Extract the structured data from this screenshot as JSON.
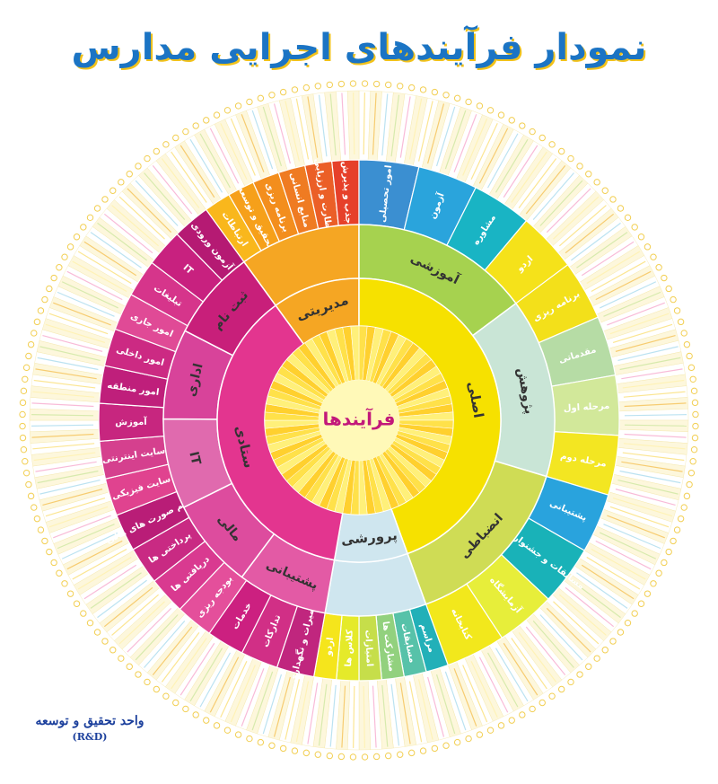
{
  "title": "نمودار فرآیندهای اجرایی مدارس",
  "footer": {
    "unit": "واحد تحقیق و توسعه",
    "abbr": "(R&D)"
  },
  "center_label": "فرآیندها",
  "sectors": [
    {
      "name": "مدیریتی",
      "color": "#f5a623",
      "children": [
        {
          "label": "ارتباطات",
          "color": "#f9b71c"
        },
        {
          "label": "تحقیق و توسعه",
          "color": "#f6a01a"
        },
        {
          "label": "برنامه ریزی",
          "color": "#f38e1d"
        },
        {
          "label": "منابع انسانی",
          "color": "#ef7b22"
        },
        {
          "label": "نظارت و ارزیابی",
          "color": "#eb5f27"
        },
        {
          "label": "جذب و پذیرش",
          "color": "#e6402a"
        }
      ]
    },
    {
      "name": "اصلی",
      "color": "#f6e100",
      "middle": [
        {
          "label": "آموزشی",
          "color": "#a6d24f"
        },
        {
          "label": "پژوهش",
          "color": "#c9e5d6"
        },
        {
          "label": "انضباطی",
          "color": "#cfdc55"
        }
      ],
      "children": [
        {
          "label": "امور تحصیلی",
          "color": "#3b8fd1"
        },
        {
          "label": "آزمون",
          "color": "#2aa4dc"
        },
        {
          "label": "مشاوره",
          "color": "#19b4c4"
        },
        {
          "label": "اردو",
          "color": "#f5e21a"
        },
        {
          "label": "برنامه ریزی",
          "color": "#f3e01a"
        },
        {
          "label": "مقدماتی",
          "color": "#b6dca5"
        },
        {
          "label": "مرحله اول",
          "color": "#d2e89a"
        },
        {
          "label": "مرحله دوم",
          "color": "#f3e622"
        },
        {
          "label": "پشتیبانی",
          "color": "#29a3dd"
        },
        {
          "label": "مسابقات و جشنواره ها",
          "color": "#19b2b8"
        },
        {
          "label": "آزمایشگاه",
          "color": "#e7ee3a"
        },
        {
          "label": "کتابخانه",
          "color": "#f2e81c"
        }
      ]
    },
    {
      "name": "پرورشی",
      "color": "#cfe6ef",
      "children": [
        {
          "label": "مراسم",
          "color": "#22b0b8"
        },
        {
          "label": "مسابقات",
          "color": "#57c2a9"
        },
        {
          "label": "مشارکت ها",
          "color": "#92d17e"
        },
        {
          "label": "امتیازات",
          "color": "#c6de4a"
        },
        {
          "label": "کلاس ها",
          "color": "#e5ea2a"
        },
        {
          "label": "اردو",
          "color": "#f5e51c"
        }
      ]
    },
    {
      "name": "ستادی",
      "color": "#e3358f",
      "middle": [
        {
          "label": "پشتیبانی",
          "color": "#e35aa5"
        },
        {
          "label": "مالی",
          "color": "#dd4c9e"
        },
        {
          "label": "IT",
          "color": "#e06aae"
        },
        {
          "label": "اداری",
          "color": "#d8439a"
        },
        {
          "label": "ثبت نام",
          "color": "#c81f7a"
        }
      ],
      "children": [
        {
          "label": "تعمیرات و نگهداری",
          "color": "#c0267e"
        },
        {
          "label": "تدارکات",
          "color": "#d12f86"
        },
        {
          "label": "خدمات",
          "color": "#cc2080"
        },
        {
          "label": "بودجه ریزی",
          "color": "#e44f9b"
        },
        {
          "label": "دریافتی ها",
          "color": "#d93a90"
        },
        {
          "label": "پرداختی ها",
          "color": "#c92a83"
        },
        {
          "label": "تنظیم صورت های مالی",
          "color": "#b91d77"
        },
        {
          "label": "سایت فیزیکی",
          "color": "#e0438f"
        },
        {
          "label": "سایت اینترنتی",
          "color": "#d5408e"
        },
        {
          "label": "آموزش",
          "color": "#c7267f"
        },
        {
          "label": "امور منطقه",
          "color": "#bf1f7b"
        },
        {
          "label": "امور داخلی",
          "color": "#cc2a83"
        },
        {
          "label": "امور جاری",
          "color": "#e04a96"
        },
        {
          "label": "تبلیغات",
          "color": "#d6358b"
        },
        {
          "label": "IT",
          "color": "#c8217f"
        },
        {
          "label": "آزمون ورودی",
          "color": "#b51a73"
        }
      ]
    }
  ]
}
